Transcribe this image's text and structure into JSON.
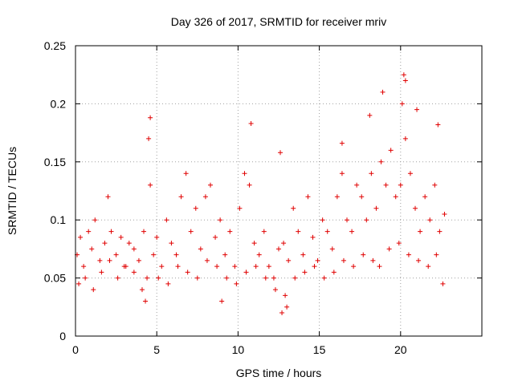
{
  "chart_data": {
    "type": "scatter",
    "title": "Day 326 of 2017, SRMTID for receiver mriv",
    "xlabel": "GPS time / hours",
    "ylabel": "SRMTID / TECUs",
    "xlim": [
      0,
      25
    ],
    "ylim": [
      0,
      0.25
    ],
    "x_ticks": [
      0,
      5,
      10,
      15,
      20
    ],
    "x_tick_labels": [
      "0",
      "5",
      "10",
      "15",
      "20"
    ],
    "y_ticks": [
      0,
      0.05,
      0.1,
      0.15,
      0.2,
      0.25
    ],
    "y_tick_labels": [
      "0",
      "0.05",
      "0.1",
      "0.15",
      "0.2",
      "0.25"
    ],
    "grid": true,
    "marker": "+",
    "color": "#e00000",
    "series": [
      {
        "name": "SRMTID",
        "x": [
          0.1,
          0.3,
          0.5,
          0.8,
          1.0,
          1.2,
          1.5,
          1.8,
          2.0,
          2.2,
          2.5,
          2.8,
          3.0,
          3.3,
          3.6,
          3.9,
          4.2,
          4.4,
          4.6,
          4.8,
          5.0,
          5.3,
          5.6,
          5.9,
          6.2,
          6.5,
          6.8,
          7.1,
          7.4,
          7.7,
          8.0,
          8.3,
          8.6,
          8.9,
          9.2,
          9.5,
          9.8,
          10.1,
          10.4,
          10.7,
          11.0,
          11.3,
          11.6,
          11.9,
          12.2,
          12.5,
          12.8,
          13.1,
          13.4,
          13.7,
          14.0,
          14.3,
          14.6,
          14.9,
          15.2,
          15.5,
          15.8,
          16.1,
          16.4,
          16.7,
          17.0,
          17.3,
          17.6,
          17.9,
          18.2,
          18.5,
          18.8,
          19.1,
          19.4,
          19.7,
          20.0,
          20.3,
          20.6,
          20.9,
          21.2,
          21.5,
          21.8,
          22.1,
          22.4,
          22.7,
          4.6,
          4.5,
          10.8,
          18.9,
          20.2,
          20.3,
          20.1,
          22.3,
          16.4,
          12.6,
          0.2,
          0.6,
          1.1,
          1.6,
          2.1,
          2.6,
          3.1,
          3.6,
          4.1,
          5.1,
          5.7,
          6.3,
          6.9,
          7.5,
          8.1,
          8.7,
          9.3,
          9.9,
          10.5,
          11.1,
          11.7,
          12.3,
          12.9,
          13.5,
          14.1,
          14.7,
          15.3,
          15.9,
          16.5,
          17.1,
          17.7,
          18.3,
          18.7,
          19.3,
          19.9,
          20.5,
          21.1,
          21.7,
          22.2,
          22.6,
          9.0,
          12.7,
          4.3,
          13.0,
          18.1,
          21.0
        ],
        "y": [
          0.07,
          0.085,
          0.06,
          0.09,
          0.075,
          0.1,
          0.065,
          0.08,
          0.12,
          0.09,
          0.07,
          0.085,
          0.06,
          0.08,
          0.075,
          0.065,
          0.09,
          0.05,
          0.13,
          0.07,
          0.085,
          0.06,
          0.1,
          0.08,
          0.07,
          0.12,
          0.14,
          0.09,
          0.11,
          0.075,
          0.12,
          0.13,
          0.085,
          0.1,
          0.07,
          0.09,
          0.06,
          0.11,
          0.14,
          0.13,
          0.08,
          0.07,
          0.09,
          0.06,
          0.05,
          0.075,
          0.08,
          0.065,
          0.11,
          0.09,
          0.07,
          0.12,
          0.085,
          0.065,
          0.1,
          0.09,
          0.075,
          0.12,
          0.14,
          0.1,
          0.09,
          0.13,
          0.12,
          0.1,
          0.14,
          0.11,
          0.15,
          0.13,
          0.16,
          0.12,
          0.13,
          0.17,
          0.14,
          0.11,
          0.09,
          0.12,
          0.1,
          0.13,
          0.09,
          0.105,
          0.188,
          0.17,
          0.183,
          0.21,
          0.225,
          0.22,
          0.2,
          0.182,
          0.166,
          0.158,
          0.045,
          0.05,
          0.04,
          0.055,
          0.065,
          0.05,
          0.06,
          0.055,
          0.04,
          0.05,
          0.045,
          0.06,
          0.055,
          0.05,
          0.065,
          0.06,
          0.05,
          0.045,
          0.055,
          0.06,
          0.05,
          0.04,
          0.035,
          0.05,
          0.055,
          0.06,
          0.05,
          0.055,
          0.065,
          0.06,
          0.07,
          0.065,
          0.06,
          0.075,
          0.08,
          0.07,
          0.065,
          0.06,
          0.07,
          0.045,
          0.03,
          0.02,
          0.03,
          0.025,
          0.19,
          0.195
        ]
      }
    ]
  }
}
